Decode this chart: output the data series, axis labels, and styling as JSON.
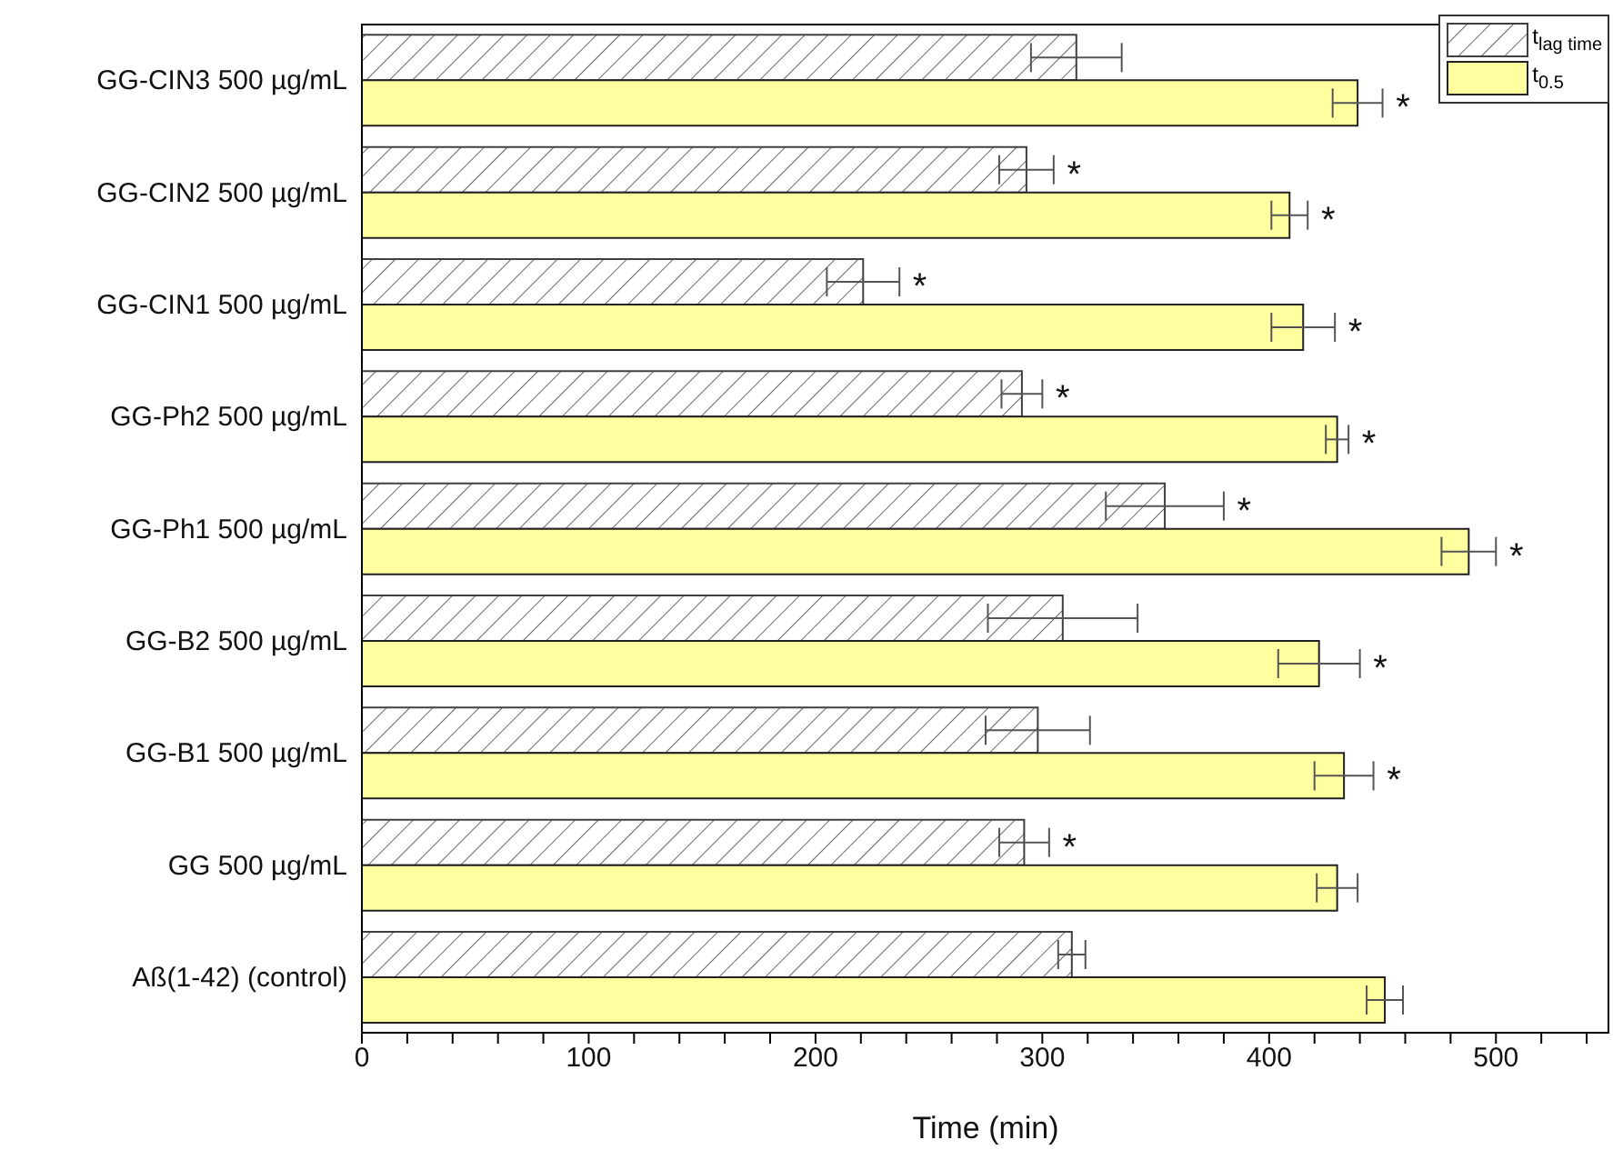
{
  "chart_data": {
    "type": "bar",
    "orientation": "horizontal",
    "xlabel": "Time (min)",
    "categories": [
      "GG-CIN3 500 µg/mL",
      "GG-CIN2 500 µg/mL",
      "GG-CIN1 500 µg/mL",
      "GG-Ph2 500 µg/mL",
      "GG-Ph1 500 µg/mL",
      "GG-B2 500 µg/mL",
      "GG-B1 500 µg/mL",
      "GG 500 µg/mL",
      "Aß(1-42) (control)"
    ],
    "series": [
      {
        "name": "t$_{lag time}$",
        "color": "#404040",
        "values": [
          315,
          293,
          221,
          291,
          354,
          309,
          298,
          292,
          313
        ],
        "errors": [
          20,
          12,
          16,
          9,
          26,
          33,
          23,
          11,
          6
        ]
      },
      {
        "name": "t$_{0.5}$",
        "color": "#ffffa0",
        "values": [
          439,
          409,
          415,
          430,
          488,
          422,
          433,
          430,
          451
        ],
        "errors": [
          11,
          8,
          14,
          5,
          12,
          18,
          13,
          9,
          8
        ]
      }
    ],
    "xlim": [
      0,
      550
    ],
    "xticks": [
      0,
      {
        "value": 20,
        "label": null
      },
      {
        "value": 40,
        "label": null
      },
      {
        "value": 60,
        "label": null
      },
      {
        "value": 80,
        "label": null
      },
      100,
      {
        "value": 120,
        "label": null
      },
      {
        "value": 140,
        "label": null
      },
      {
        "value": 160,
        "label": null
      },
      {
        "value": 180,
        "label": null
      },
      200,
      {
        "value": 220,
        "label": null
      },
      {
        "value": 240,
        "label": null
      },
      {
        "value": 260,
        "label": null
      },
      {
        "value": 280,
        "label": null
      },
      300,
      {
        "value": 320,
        "label": null
      },
      {
        "value": 340,
        "label": null
      },
      {
        "value": 360,
        "label": null
      },
      {
        "value": 380,
        "label": null
      },
      400,
      {
        "value": 420,
        "label": null
      },
      {
        "value": 440,
        "label": null
      },
      {
        "value": 460,
        "label": null
      },
      {
        "value": 480,
        "label": null
      },
      500,
      {
        "value": 520,
        "label": null
      },
      {
        "value": 540,
        "label": null
      }
    ],
    "legend": "top right",
    "grid": false,
    "annotations": [
      {
        "text": "*",
        "x": 439,
        "y": "GG-CIN3 500 µg/mL"
      },
      {
        "text": "*",
        "x": 314,
        "y": "GG-CIN2 500 µg/mL"
      },
      {
        "text": "*",
        "x": 409,
        "y": "GG-CIN2 500 µg/mL"
      },
      {
        "text": "*",
        "x": 245,
        "y": "GG-CIN1 500 µg/mL"
      },
      {
        "text": "*",
        "x": 415,
        "y": "GG-CIN1 500 µg/mL"
      },
      {
        "text": "*",
        "x": 308,
        "y": "GG-Ph2 500 µg/mL"
      },
      {
        "text": "*",
        "x": 430,
        "y": "GG-Ph2 500 µg/mL"
      },
      {
        "text": "*",
        "x": 387,
        "y": "GG-Ph1 500 µg/mL"
      },
      {
        "text": "*",
        "x": 488,
        "y": "GG-Ph1 500 µg/mL"
      },
      {
        "text": "*",
        "x": 422,
        "y": "GG-B2 500 µg/mL"
      },
      {
        "text": "*",
        "x": 433,
        "y": "GG-B1 500 µg/mL"
      },
      {
        "text": "*",
        "x": 311,
        "y": "GG 500 µg/mL"
      }
    ]
  }
}
